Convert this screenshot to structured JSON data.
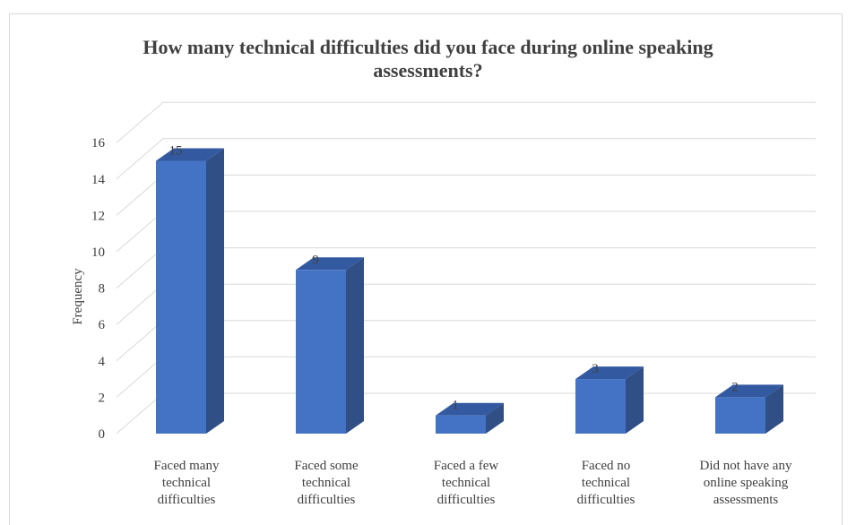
{
  "chart_data": {
    "type": "bar",
    "title_line1": "How many technical difficulties did you face during online speaking",
    "title_line2": "assessments?",
    "xlabel": "",
    "ylabel": "Frequency",
    "ylim": [
      0,
      16
    ],
    "yticks": [
      "0",
      "2",
      "4",
      "6",
      "8",
      "10",
      "12",
      "14",
      "16"
    ],
    "categories": [
      [
        "Faced many",
        "technical",
        "difficulties"
      ],
      [
        "Faced some",
        "technical",
        "difficulties"
      ],
      [
        "Faced a few",
        "technical",
        "difficulties"
      ],
      [
        "Faced no",
        "technical",
        "difficulties"
      ],
      [
        "Did not have any",
        "online speaking",
        "assessments"
      ]
    ],
    "values": [
      15,
      9,
      1,
      3,
      2
    ],
    "grid": true,
    "legend": "none",
    "bar_color": "#4472C4"
  }
}
